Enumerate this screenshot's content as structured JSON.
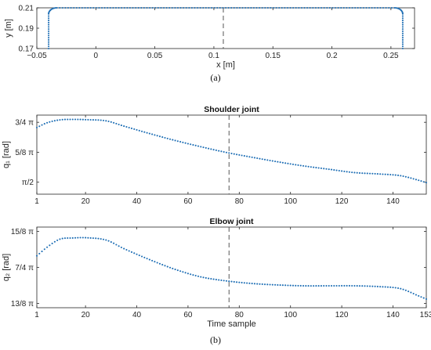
{
  "chart_data": [
    {
      "id": "a",
      "type": "scatter",
      "caption": "(a)",
      "title": "",
      "xlabel": "x [m]",
      "ylabel": "y [m]",
      "xlim": [
        -0.05,
        0.27
      ],
      "ylim": [
        0.17,
        0.21
      ],
      "xticks": [
        {
          "v": -0.05,
          "t": "−0.05"
        },
        {
          "v": 0,
          "t": "0"
        },
        {
          "v": 0.05,
          "t": "0.05"
        },
        {
          "v": 0.1,
          "t": "0.1"
        },
        {
          "v": 0.15,
          "t": "0.15"
        },
        {
          "v": 0.2,
          "t": "0.2"
        },
        {
          "v": 0.25,
          "t": "0.25"
        }
      ],
      "yticks": [
        {
          "v": 0.17,
          "t": "0.17"
        },
        {
          "v": 0.19,
          "t": "0.19"
        },
        {
          "v": 0.21,
          "t": "0.21"
        }
      ],
      "vline_x": 0.108,
      "color": "#1f6fb5",
      "path_x_left": -0.04,
      "path_x_right": 0.26,
      "path_y_top": 0.21,
      "path_y_bottom": 0.17,
      "corner_radius_x": 0.007,
      "corner_radius_y": 0.006
    },
    {
      "id": "b1",
      "type": "line",
      "title": "Shoulder joint",
      "xlabel": "",
      "ylabel": "q₁ [rad]",
      "xlim": [
        1,
        153
      ],
      "ylim": [
        0.45,
        0.78
      ],
      "xticks": [
        {
          "v": 1,
          "t": "1"
        },
        {
          "v": 20,
          "t": "20"
        },
        {
          "v": 40,
          "t": "40"
        },
        {
          "v": 60,
          "t": "60"
        },
        {
          "v": 80,
          "t": "80"
        },
        {
          "v": 100,
          "t": "100"
        },
        {
          "v": 120,
          "t": "120"
        },
        {
          "v": 140,
          "t": "140"
        }
      ],
      "yticks": [
        {
          "v": 0.5,
          "t": "π/2"
        },
        {
          "v": 0.625,
          "t": "5/8 π"
        },
        {
          "v": 0.75,
          "t": "3/4 π"
        }
      ],
      "y_unit": "π",
      "vline_x": 76,
      "color": "#1f6fb5",
      "keypoints": [
        [
          1,
          0.728
        ],
        [
          5,
          0.748
        ],
        [
          10,
          0.76
        ],
        [
          15,
          0.762
        ],
        [
          20,
          0.761
        ],
        [
          28,
          0.756
        ],
        [
          35,
          0.734
        ],
        [
          45,
          0.703
        ],
        [
          55,
          0.674
        ],
        [
          65,
          0.648
        ],
        [
          75,
          0.624
        ],
        [
          85,
          0.604
        ],
        [
          95,
          0.585
        ],
        [
          105,
          0.568
        ],
        [
          115,
          0.554
        ],
        [
          125,
          0.54
        ],
        [
          135,
          0.534
        ],
        [
          143,
          0.527
        ],
        [
          150,
          0.508
        ],
        [
          153,
          0.498
        ]
      ]
    },
    {
      "id": "b2",
      "type": "line",
      "caption": "(b)",
      "title": "Elbow joint",
      "xlabel": "Time sample",
      "ylabel": "q₂ [rad]",
      "xlim": [
        1,
        153
      ],
      "ylim": [
        1.61,
        1.89
      ],
      "xticks": [
        {
          "v": 1,
          "t": "1"
        },
        {
          "v": 20,
          "t": "20"
        },
        {
          "v": 40,
          "t": "40"
        },
        {
          "v": 60,
          "t": "60"
        },
        {
          "v": 80,
          "t": "80"
        },
        {
          "v": 100,
          "t": "100"
        },
        {
          "v": 120,
          "t": "120"
        },
        {
          "v": 140,
          "t": "140"
        },
        {
          "v": 153,
          "t": "153"
        }
      ],
      "yticks": [
        {
          "v": 1.625,
          "t": "13/8 π"
        },
        {
          "v": 1.75,
          "t": "7/4 π"
        },
        {
          "v": 1.875,
          "t": "15/8 π"
        }
      ],
      "y_unit": "π",
      "vline_x": 76,
      "color": "#1f6fb5",
      "keypoints": [
        [
          1,
          1.79
        ],
        [
          5,
          1.82
        ],
        [
          10,
          1.848
        ],
        [
          15,
          1.852
        ],
        [
          20,
          1.853
        ],
        [
          28,
          1.845
        ],
        [
          35,
          1.815
        ],
        [
          45,
          1.777
        ],
        [
          55,
          1.743
        ],
        [
          65,
          1.717
        ],
        [
          75,
          1.703
        ],
        [
          85,
          1.694
        ],
        [
          95,
          1.689
        ],
        [
          105,
          1.686
        ],
        [
          115,
          1.686
        ],
        [
          125,
          1.686
        ],
        [
          135,
          1.683
        ],
        [
          143,
          1.676
        ],
        [
          150,
          1.651
        ],
        [
          153,
          1.64
        ]
      ]
    }
  ]
}
